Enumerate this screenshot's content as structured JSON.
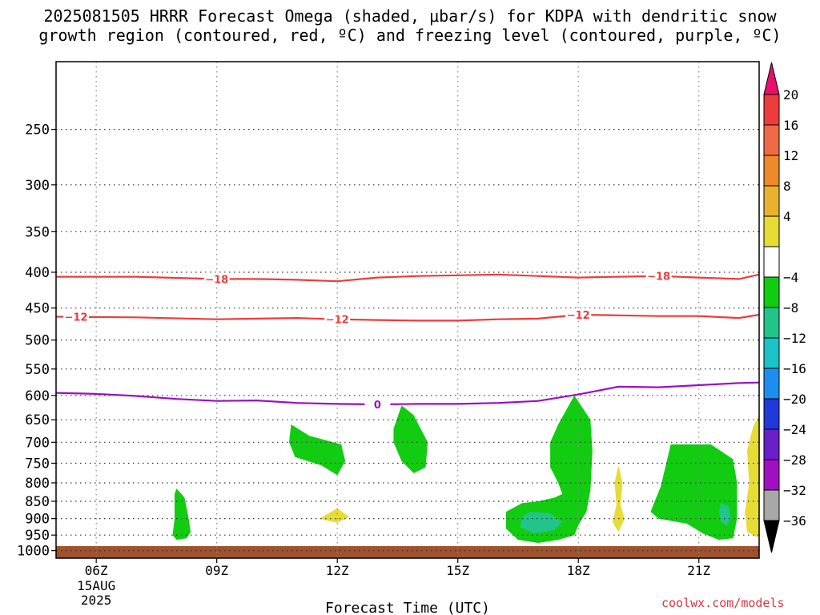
{
  "title": {
    "line1": "2025081505 HRRR Forecast Omega (shaded, μbar/s) for KDPA with dendritic snow",
    "line2": "growth region (contoured, red, ºC) and freezing level (contoured, purple, ºC)"
  },
  "credit": "coolwx.com/models",
  "chart_data": {
    "type": "time-height cross-section",
    "title": "2025081505 HRRR Forecast Omega (shaded, μbar/s) for KDPA with dendritic snow growth region (contoured, red, ºC) and freezing level (contoured, purple, ºC)",
    "xlabel": "Forecast Time (UTC)",
    "ylabel": "",
    "x_range_hours": [
      5.0,
      22.5
    ],
    "x_ticks": [
      {
        "hour": 6,
        "label": "06Z",
        "sub": [
          "15AUG",
          "2025"
        ]
      },
      {
        "hour": 9,
        "label": "09Z",
        "sub": []
      },
      {
        "hour": 12,
        "label": "12Z",
        "sub": []
      },
      {
        "hour": 15,
        "label": "15Z",
        "sub": []
      },
      {
        "hour": 18,
        "label": "18Z",
        "sub": []
      },
      {
        "hour": 21,
        "label": "21Z",
        "sub": []
      }
    ],
    "y_range_hPa": [
      1025,
      200
    ],
    "y_scale": "log-pressure",
    "y_ticks": [
      250,
      300,
      350,
      400,
      450,
      500,
      550,
      600,
      650,
      700,
      750,
      800,
      850,
      900,
      950,
      1000
    ],
    "grid": "dotted",
    "colorbar": {
      "labels": [
        "20",
        "16",
        "12",
        "8",
        "4",
        "−4",
        "−8",
        "−12",
        "−16",
        "−20",
        "−24",
        "−28",
        "−32",
        "−36"
      ],
      "bins": [
        {
          "color": "#e8106a",
          "range": "> 20",
          "extend": "top"
        },
        {
          "color": "#ee3b3b",
          "range": "16 to 20"
        },
        {
          "color": "#f06a45",
          "range": "12 to 16"
        },
        {
          "color": "#ec8a2c",
          "range": "8 to 12"
        },
        {
          "color": "#e8b230",
          "range": "4 to 8"
        },
        {
          "color": "#e6dc35",
          "range": "0 to 4"
        },
        {
          "color": "#ffffff",
          "range": "-4 to 4"
        },
        {
          "color": "#11cc11",
          "range": "-8 to -4"
        },
        {
          "color": "#21c58a",
          "range": "-12 to -8"
        },
        {
          "color": "#1bc2c8",
          "range": "-16 to -12"
        },
        {
          "color": "#1d8ef0",
          "range": "-20 to -16"
        },
        {
          "color": "#2238d8",
          "range": "-24 to -20"
        },
        {
          "color": "#6a1fc8",
          "range": "-28 to -24"
        },
        {
          "color": "#a010c0",
          "range": "-32 to -28"
        },
        {
          "color": "#a8a8a8",
          "range": "-36 to -32"
        },
        {
          "color": "#000000",
          "range": "< -36",
          "extend": "bottom"
        }
      ]
    },
    "contours": [
      {
        "name": "-18 °C isotherm",
        "value": "−18",
        "color": "#ee3b3b",
        "points": [
          [
            5.0,
            406
          ],
          [
            7,
            406
          ],
          [
            9,
            409
          ],
          [
            10,
            409
          ],
          [
            11,
            410
          ],
          [
            12,
            412
          ],
          [
            13,
            407
          ],
          [
            14,
            405
          ],
          [
            15,
            404
          ],
          [
            16,
            403
          ],
          [
            17,
            405
          ],
          [
            18,
            407
          ],
          [
            19,
            406
          ],
          [
            20,
            405
          ],
          [
            21,
            407
          ],
          [
            22,
            409
          ],
          [
            22.5,
            403
          ]
        ],
        "labels_at_hour": [
          9.0,
          20.0
        ]
      },
      {
        "name": "-12 °C isotherm",
        "value": "−12",
        "color": "#ee3b3b",
        "points": [
          [
            5.0,
            463
          ],
          [
            7,
            464
          ],
          [
            9,
            467
          ],
          [
            10,
            466
          ],
          [
            11,
            465
          ],
          [
            12,
            467
          ],
          [
            13,
            468
          ],
          [
            14,
            469
          ],
          [
            15,
            469
          ],
          [
            16,
            467
          ],
          [
            17,
            466
          ],
          [
            18,
            460
          ],
          [
            19,
            461
          ],
          [
            20,
            462
          ],
          [
            21,
            462
          ],
          [
            22,
            465
          ],
          [
            22.5,
            460
          ]
        ],
        "labels_at_hour": [
          5.5,
          12.0,
          18.0
        ]
      },
      {
        "name": "0 °C freezing level",
        "value": "0",
        "color": "#9a10c0",
        "points": [
          [
            5.0,
            595
          ],
          [
            6,
            597
          ],
          [
            7,
            601
          ],
          [
            8,
            607
          ],
          [
            9,
            611
          ],
          [
            10,
            610
          ],
          [
            11,
            615
          ],
          [
            12,
            617
          ],
          [
            13,
            618
          ],
          [
            14,
            617
          ],
          [
            15,
            617
          ],
          [
            16,
            615
          ],
          [
            17,
            611
          ],
          [
            18,
            598
          ],
          [
            19,
            583
          ],
          [
            20,
            584
          ],
          [
            21,
            580
          ],
          [
            22,
            576
          ],
          [
            22.5,
            575
          ]
        ],
        "labels_at_hour": [
          13.0
        ]
      }
    ],
    "shaded_regions": [
      {
        "value_range": "-8 to -4",
        "color": "#11cc11",
        "polygon": [
          [
            8.0,
            815
          ],
          [
            8.2,
            840
          ],
          [
            8.3,
            900
          ],
          [
            8.35,
            940
          ],
          [
            8.25,
            960
          ],
          [
            8.0,
            965
          ],
          [
            7.9,
            950
          ],
          [
            7.95,
            900
          ],
          [
            7.95,
            830
          ]
        ]
      },
      {
        "value_range": "-8 to -4",
        "color": "#11cc11",
        "polygon": [
          [
            10.85,
            660
          ],
          [
            11.3,
            685
          ],
          [
            12.1,
            705
          ],
          [
            12.2,
            745
          ],
          [
            12.0,
            780
          ],
          [
            11.6,
            755
          ],
          [
            10.95,
            735
          ],
          [
            10.8,
            700
          ]
        ]
      },
      {
        "value_range": "-8 to -4",
        "color": "#11cc11",
        "polygon": [
          [
            13.6,
            620
          ],
          [
            13.9,
            640
          ],
          [
            14.25,
            700
          ],
          [
            14.2,
            760
          ],
          [
            13.9,
            775
          ],
          [
            13.6,
            745
          ],
          [
            13.4,
            700
          ],
          [
            13.4,
            670
          ]
        ]
      },
      {
        "value_range": "-8 to -4",
        "color": "#11cc11",
        "polygon": [
          [
            17.9,
            600
          ],
          [
            18.3,
            650
          ],
          [
            18.35,
            720
          ],
          [
            18.3,
            820
          ],
          [
            18.2,
            880
          ],
          [
            18.0,
            920
          ],
          [
            17.9,
            950
          ],
          [
            17.5,
            965
          ],
          [
            17.0,
            975
          ],
          [
            16.5,
            965
          ],
          [
            16.2,
            930
          ],
          [
            16.2,
            880
          ],
          [
            16.6,
            855
          ],
          [
            17.0,
            850
          ],
          [
            17.4,
            840
          ],
          [
            17.6,
            830
          ],
          [
            17.5,
            800
          ],
          [
            17.3,
            760
          ],
          [
            17.3,
            700
          ],
          [
            17.5,
            660
          ]
        ]
      },
      {
        "value_range": "-8 to -4",
        "color": "#11cc11",
        "polygon": [
          [
            20.3,
            705
          ],
          [
            21.3,
            705
          ],
          [
            21.85,
            740
          ],
          [
            21.95,
            800
          ],
          [
            21.95,
            900
          ],
          [
            21.85,
            960
          ],
          [
            21.5,
            965
          ],
          [
            21.1,
            945
          ],
          [
            20.7,
            915
          ],
          [
            20.0,
            900
          ],
          [
            19.8,
            880
          ],
          [
            19.9,
            850
          ],
          [
            20.05,
            810
          ]
        ]
      },
      {
        "value_range": "-12 to -8",
        "color": "#21c58a",
        "polygon": [
          [
            16.8,
            880
          ],
          [
            17.3,
            885
          ],
          [
            17.6,
            910
          ],
          [
            17.4,
            935
          ],
          [
            16.9,
            945
          ],
          [
            16.55,
            925
          ],
          [
            16.6,
            895
          ]
        ]
      },
      {
        "value_range": "-12 to -8",
        "color": "#21c58a",
        "polygon": [
          [
            21.55,
            855
          ],
          [
            21.75,
            865
          ],
          [
            21.8,
            900
          ],
          [
            21.7,
            920
          ],
          [
            21.55,
            910
          ],
          [
            21.5,
            880
          ]
        ]
      },
      {
        "value_range": "0 to 4",
        "color": "#e6dc35",
        "polygon": [
          [
            12.0,
            870
          ],
          [
            12.3,
            895
          ],
          [
            12.0,
            912
          ],
          [
            11.55,
            900
          ]
        ]
      },
      {
        "value_range": "0 to 4",
        "color": "#e6dc35",
        "polygon": [
          [
            19.0,
            755
          ],
          [
            19.1,
            800
          ],
          [
            19.05,
            860
          ],
          [
            19.15,
            900
          ],
          [
            19.0,
            940
          ],
          [
            18.85,
            910
          ],
          [
            18.95,
            860
          ],
          [
            18.9,
            800
          ]
        ]
      },
      {
        "value_range": "0 to 4",
        "color": "#e6dc35",
        "polygon": [
          [
            22.5,
            640
          ],
          [
            22.5,
            960
          ],
          [
            22.2,
            940
          ],
          [
            22.15,
            880
          ],
          [
            22.25,
            800
          ],
          [
            22.2,
            720
          ],
          [
            22.35,
            665
          ]
        ]
      }
    ],
    "terrain_below_hPa": 985
  }
}
